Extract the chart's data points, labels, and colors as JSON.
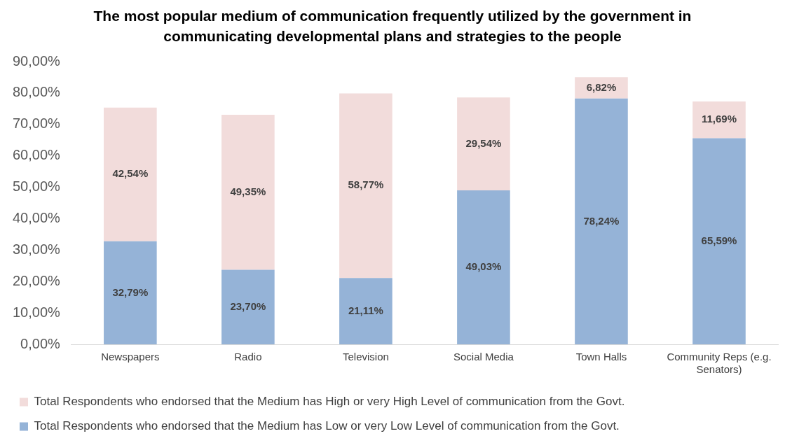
{
  "chart_data": {
    "type": "bar",
    "title": "The most popular medium of communication frequently utilized by the government in communicating developmental plans and strategies to the people",
    "categories": [
      "Newspapers",
      "Radio",
      "Television",
      "Social Media",
      "Town Halls",
      "Community Reps (e.g. Senators)"
    ],
    "stacked": true,
    "series": [
      {
        "name": "Total Respondents who endorsed that the Medium has Low or very Low Level of communication from the Govt.",
        "color": "#95b3d7",
        "values": [
          32.79,
          23.7,
          21.11,
          49.03,
          78.24,
          65.59
        ],
        "value_labels": [
          "32,79%",
          "23,70%",
          "21,11%",
          "49,03%",
          "78,24%",
          "65,59%"
        ]
      },
      {
        "name": "Total Respondents who endorsed that the Medium has High or very High Level of communication from the Govt.",
        "color": "#f2dcdb",
        "values": [
          42.54,
          49.35,
          58.77,
          29.54,
          6.82,
          11.69
        ],
        "value_labels": [
          "42,54%",
          "49,35%",
          "58,77%",
          "29,54%",
          "6,82%",
          "11,69%"
        ]
      }
    ],
    "ylim": [
      0,
      90
    ],
    "yticks": [
      {
        "value": 0,
        "label": "0,00%"
      },
      {
        "value": 10,
        "label": "10,00%"
      },
      {
        "value": 20,
        "label": "20,00%"
      },
      {
        "value": 30,
        "label": "30,00%"
      },
      {
        "value": 40,
        "label": "40,00%"
      },
      {
        "value": 50,
        "label": "50,00%"
      },
      {
        "value": 60,
        "label": "60,00%"
      },
      {
        "value": 70,
        "label": "70,00%"
      },
      {
        "value": 80,
        "label": "80,00%"
      },
      {
        "value": 90,
        "label": "90,00%"
      }
    ],
    "grid": false,
    "legend": "bottom"
  }
}
